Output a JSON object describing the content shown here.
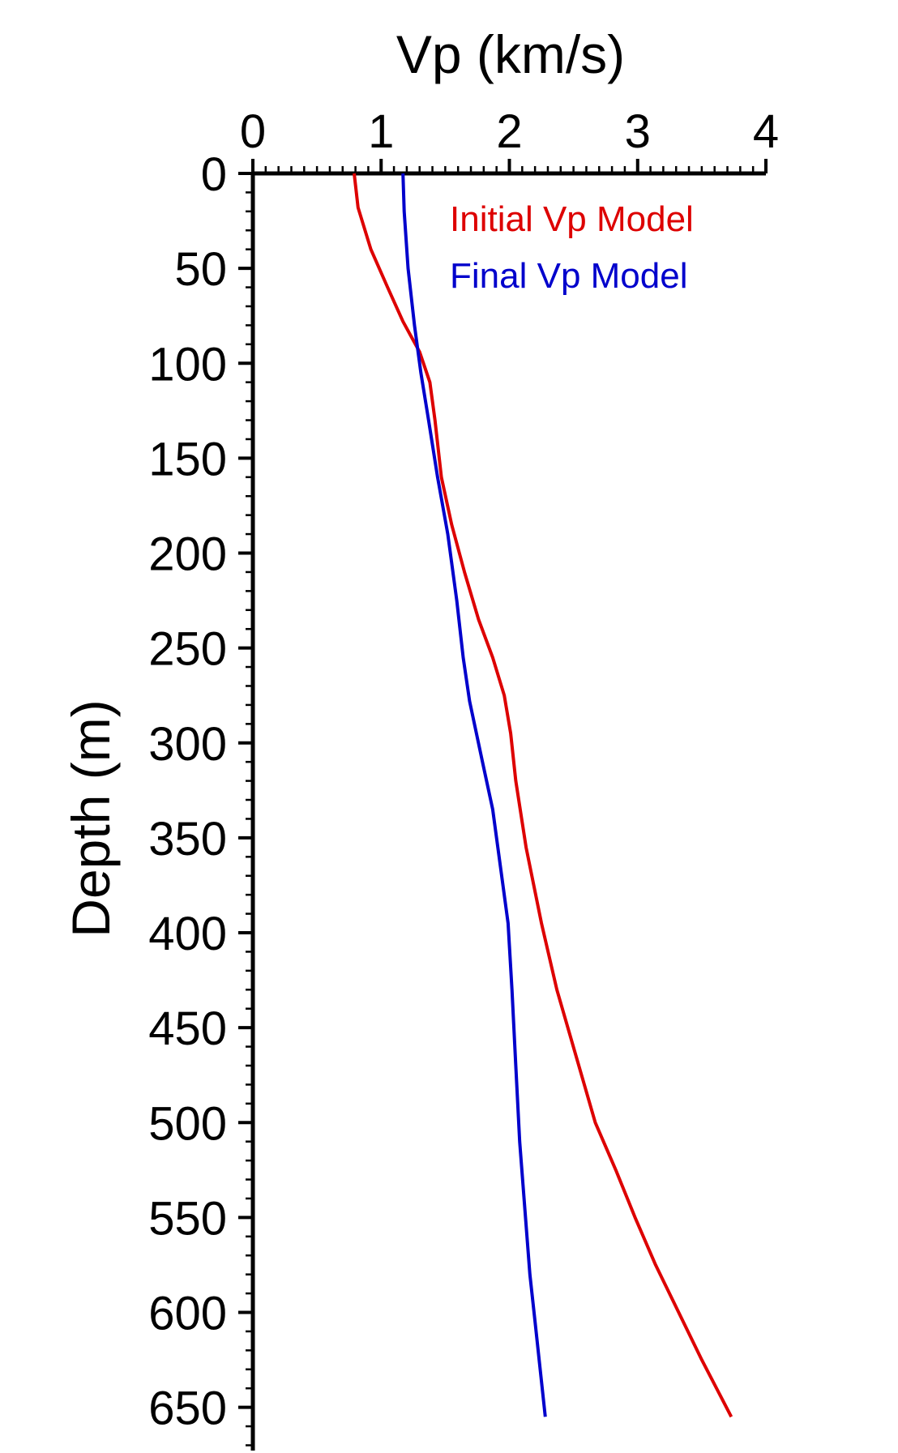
{
  "chart_data": {
    "type": "line",
    "title": "",
    "xlabel": "Vp (km/s)",
    "ylabel": "Depth (m)",
    "xlim": [
      0,
      4
    ],
    "ylim": [
      0,
      670
    ],
    "x_axis_position": "top",
    "y_axis_inverted": true,
    "x_ticks": [
      0,
      1,
      2,
      3,
      4
    ],
    "y_ticks": [
      0,
      50,
      100,
      150,
      200,
      250,
      300,
      350,
      400,
      450,
      500,
      550,
      600,
      650
    ],
    "grid": false,
    "legend_position": "top-right",
    "series": [
      {
        "name": "Initial Vp Model",
        "color": "#dd0000",
        "x": [
          0.79,
          0.82,
          0.92,
          1.05,
          1.17,
          1.3,
          1.38,
          1.42,
          1.47,
          1.55,
          1.65,
          1.76,
          1.87,
          1.96,
          2.01,
          2.05,
          2.13,
          2.25,
          2.37,
          2.52,
          2.67,
          2.83,
          2.98,
          3.14,
          3.32,
          3.5,
          3.73
        ],
        "y": [
          0,
          18,
          40,
          60,
          78,
          94,
          110,
          130,
          160,
          185,
          210,
          235,
          255,
          275,
          295,
          320,
          355,
          395,
          430,
          465,
          500,
          525,
          550,
          575,
          600,
          625,
          655
        ]
      },
      {
        "name": "Final Vp Model",
        "color": "#0000cc",
        "x": [
          1.17,
          1.18,
          1.21,
          1.26,
          1.31,
          1.37,
          1.44,
          1.52,
          1.59,
          1.64,
          1.69,
          1.79,
          1.87,
          1.93,
          1.99,
          2.02,
          2.05,
          2.08,
          2.12,
          2.16,
          2.2,
          2.24,
          2.28
        ],
        "y": [
          0,
          20,
          50,
          80,
          105,
          130,
          160,
          190,
          225,
          255,
          278,
          310,
          335,
          365,
          395,
          430,
          470,
          510,
          545,
          580,
          605,
          630,
          655
        ]
      }
    ]
  }
}
